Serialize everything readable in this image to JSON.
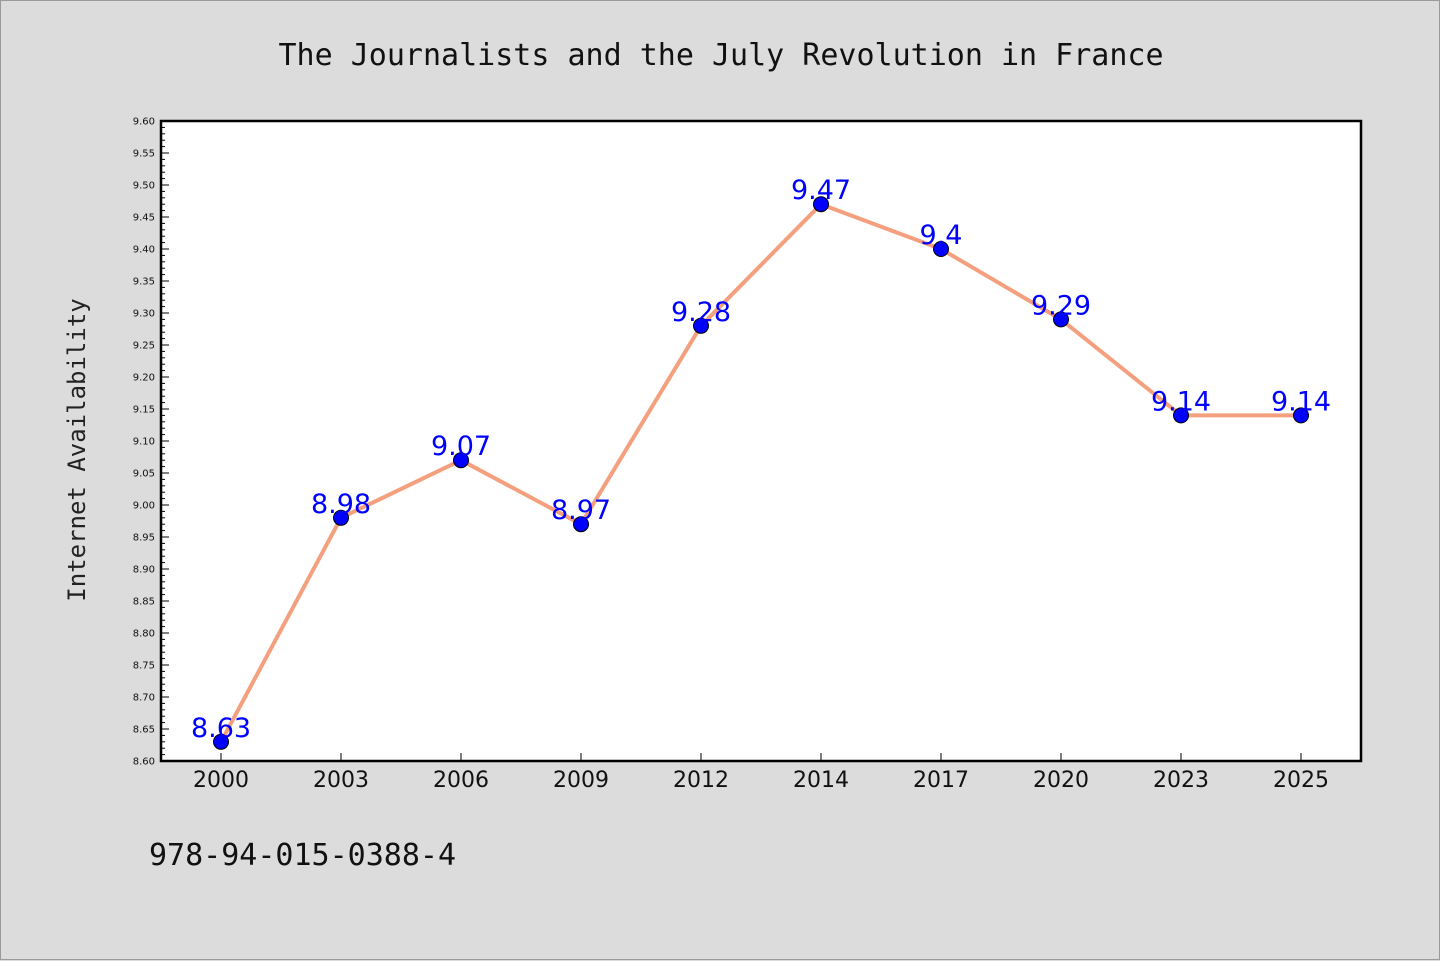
{
  "chart_data": {
    "type": "line",
    "title": "The Journalists and the July Revolution in France",
    "xlabel": "",
    "ylabel": "Internet Availability",
    "categories": [
      "2000",
      "2003",
      "2006",
      "2009",
      "2012",
      "2014",
      "2017",
      "2020",
      "2023",
      "2025"
    ],
    "series": [
      {
        "values": [
          8.63,
          8.98,
          9.07,
          8.97,
          9.28,
          9.47,
          9.4,
          9.29,
          9.14,
          9.14
        ],
        "data_labels": [
          "8.63",
          "8.98",
          "9.07",
          "8.97",
          "9.28",
          "9.47",
          "9.4",
          "9.29",
          "9.14",
          "9.14"
        ],
        "line_color": "#f4a07e",
        "marker_color": "#0000ff"
      }
    ],
    "ylim": [
      8.6,
      9.6
    ],
    "yticks": [
      "8.60",
      "8.65",
      "8.70",
      "8.75",
      "8.80",
      "8.85",
      "8.90",
      "8.95",
      "9.00",
      "9.05",
      "9.10",
      "9.15",
      "9.20",
      "9.25",
      "9.30",
      "9.35",
      "9.40",
      "9.45",
      "9.50",
      "9.55",
      "9.60"
    ],
    "grid": false,
    "legend": "none"
  },
  "footer": {
    "isbn": "978-94-015-0388-4"
  }
}
